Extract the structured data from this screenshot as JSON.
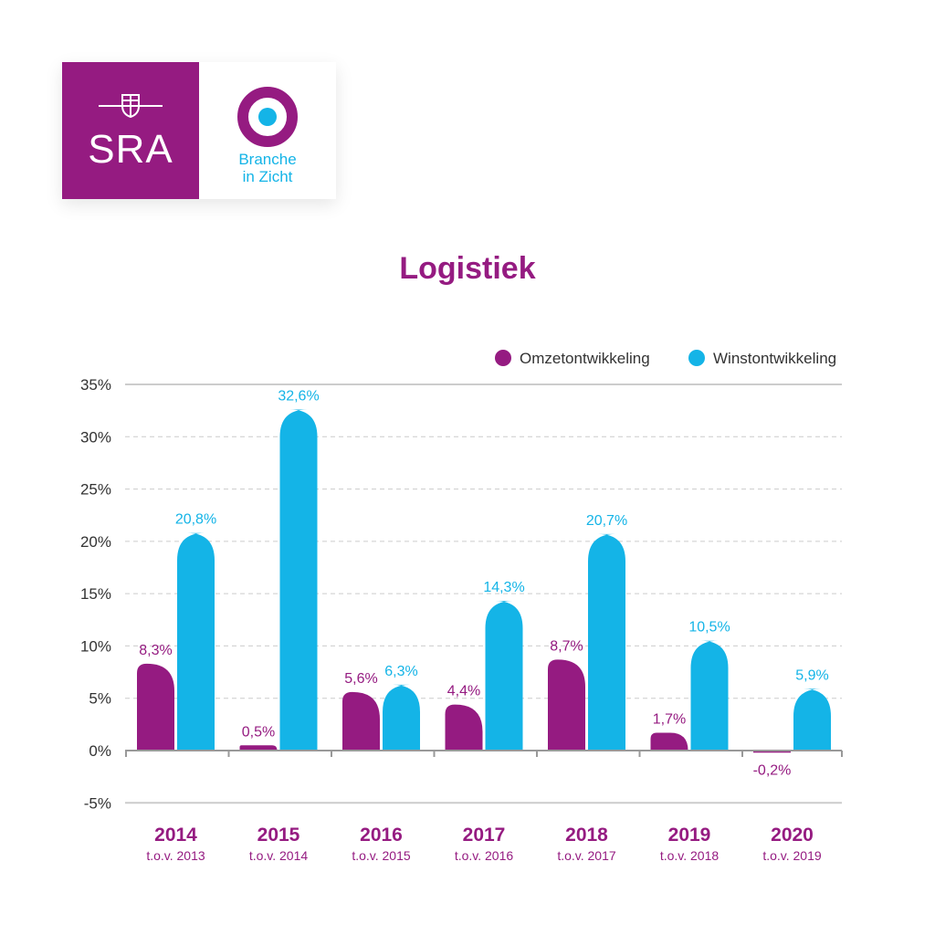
{
  "logo": {
    "sra_text": "SRA",
    "biz_line1": "Branche",
    "biz_line2": "in Zicht",
    "sra_color": "#951b81",
    "biz_color": "#14b4e7",
    "emblem_icon": "shield-emblem-icon",
    "target_icon": "target-icon"
  },
  "chart_data": {
    "type": "bar",
    "title": "Logistiek",
    "categories": [
      "2014",
      "2015",
      "2016",
      "2017",
      "2018",
      "2019",
      "2020"
    ],
    "subcategories": [
      "t.o.v. 2013",
      "t.o.v. 2014",
      "t.o.v. 2015",
      "t.o.v. 2016",
      "t.o.v. 2017",
      "t.o.v. 2018",
      "t.o.v. 2019"
    ],
    "series": [
      {
        "name": "Omzetontwikkeling",
        "color": "#951b81",
        "values": [
          8.3,
          0.5,
          5.6,
          4.4,
          8.7,
          1.7,
          -0.2
        ],
        "labels": [
          "8,3%",
          "0,5%",
          "5,6%",
          "4,4%",
          "8,7%",
          "1,7%",
          "-0,2%"
        ]
      },
      {
        "name": "Winstontwikkeling",
        "color": "#14b4e7",
        "values": [
          20.8,
          32.6,
          6.3,
          14.3,
          20.7,
          10.5,
          5.9
        ],
        "labels": [
          "20,8%",
          "32,6%",
          "6,3%",
          "14,3%",
          "20,7%",
          "10,5%",
          "5,9%"
        ]
      }
    ],
    "yticks": [
      35,
      30,
      25,
      20,
      15,
      10,
      5,
      0,
      -5
    ],
    "ytick_labels": [
      "35%",
      "30%",
      "25%",
      "20%",
      "15%",
      "10%",
      "5%",
      "0%",
      "-5%"
    ],
    "ylim": [
      -5,
      35
    ],
    "grid": true,
    "legend": "top-right"
  }
}
